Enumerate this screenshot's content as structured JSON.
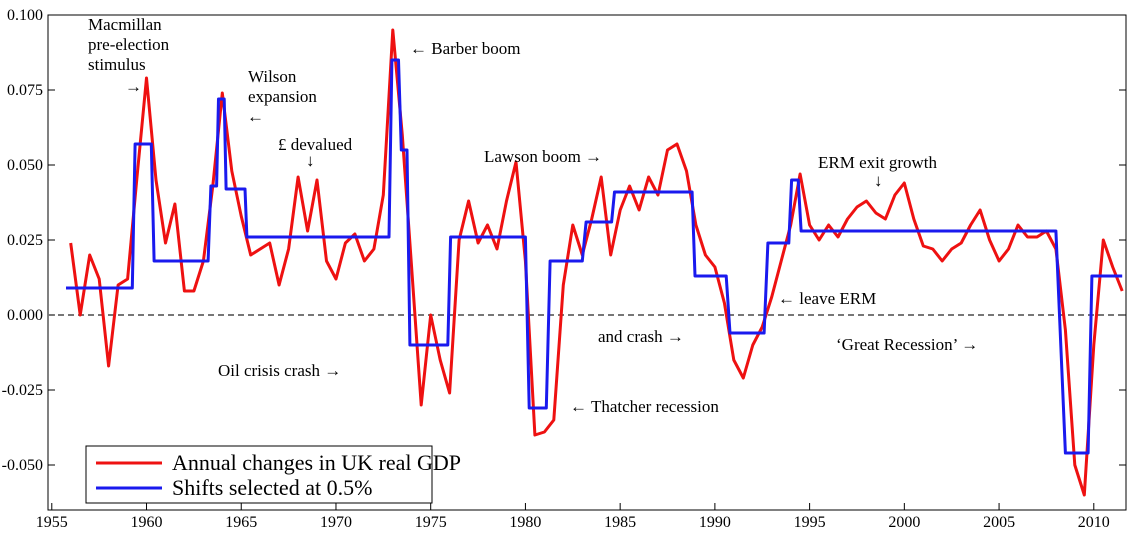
{
  "chart_data": {
    "type": "line",
    "xlim": [
      1954.8,
      2011.7
    ],
    "xticks": [
      1955,
      1960,
      1965,
      1970,
      1975,
      1980,
      1985,
      1990,
      1995,
      2000,
      2005,
      2010
    ],
    "ylim": [
      -0.065,
      0.1
    ],
    "yticks": [
      {
        "value": -0.05,
        "label": "-0.050"
      },
      {
        "value": -0.025,
        "label": "-0.025"
      },
      {
        "value": 0,
        "label": "0.000"
      },
      {
        "value": 0.025,
        "label": "0.025"
      },
      {
        "value": 0.05,
        "label": "0.050"
      },
      {
        "value": 0.075,
        "label": "0.075"
      },
      {
        "value": 0.1,
        "label": "0.100"
      }
    ],
    "zero_line": true,
    "legend": "lower left",
    "series": [
      {
        "name": "Annual changes in UK real GDP",
        "color": "#ee1111",
        "x": [
          1956,
          1956.5,
          1957,
          1957.5,
          1958,
          1958.5,
          1959,
          1959.5,
          1960,
          1960.5,
          1961,
          1961.5,
          1962,
          1962.5,
          1963,
          1963.5,
          1964,
          1964.5,
          1965,
          1965.5,
          1966,
          1966.5,
          1967,
          1967.5,
          1968,
          1968.5,
          1969,
          1969.5,
          1970,
          1970.5,
          1971,
          1971.5,
          1972,
          1972.5,
          1973,
          1973.5,
          1974,
          1974.5,
          1975,
          1975.5,
          1976,
          1976.5,
          1977,
          1977.5,
          1978,
          1978.5,
          1979,
          1979.5,
          1980,
          1980.5,
          1981,
          1981.5,
          1982,
          1982.5,
          1983,
          1983.5,
          1984,
          1984.5,
          1985,
          1985.5,
          1986,
          1986.5,
          1987,
          1987.5,
          1988,
          1988.5,
          1989,
          1989.5,
          1990,
          1990.5,
          1991,
          1991.5,
          1992,
          1992.5,
          1993,
          1993.5,
          1994,
          1994.5,
          1995,
          1995.5,
          1996,
          1996.5,
          1997,
          1997.5,
          1998,
          1998.5,
          1999,
          1999.5,
          2000,
          2000.5,
          2001,
          2001.5,
          2002,
          2002.5,
          2003,
          2003.5,
          2004,
          2004.5,
          2005,
          2005.5,
          2006,
          2006.5,
          2007,
          2007.5,
          2008,
          2008.5,
          2009,
          2009.5,
          2010,
          2010.5,
          2011,
          2011.5
        ],
        "values": [
          0.024,
          0.0,
          0.02,
          0.012,
          -0.017,
          0.01,
          0.012,
          0.046,
          0.079,
          0.045,
          0.024,
          0.037,
          0.008,
          0.008,
          0.018,
          0.043,
          0.074,
          0.048,
          0.033,
          0.02,
          0.022,
          0.024,
          0.01,
          0.022,
          0.046,
          0.028,
          0.045,
          0.018,
          0.012,
          0.024,
          0.027,
          0.018,
          0.022,
          0.04,
          0.095,
          0.06,
          0.015,
          -0.03,
          0.0,
          -0.015,
          -0.026,
          0.025,
          0.038,
          0.024,
          0.03,
          0.022,
          0.038,
          0.051,
          0.018,
          -0.04,
          -0.039,
          -0.035,
          0.01,
          0.03,
          0.02,
          0.032,
          0.046,
          0.02,
          0.035,
          0.043,
          0.035,
          0.046,
          0.04,
          0.055,
          0.057,
          0.048,
          0.03,
          0.02,
          0.016,
          0.004,
          -0.015,
          -0.021,
          -0.01,
          -0.004,
          0.006,
          0.018,
          0.03,
          0.047,
          0.03,
          0.025,
          0.03,
          0.026,
          0.032,
          0.036,
          0.038,
          0.034,
          0.032,
          0.04,
          0.044,
          0.032,
          0.023,
          0.022,
          0.018,
          0.022,
          0.024,
          0.03,
          0.035,
          0.025,
          0.018,
          0.022,
          0.03,
          0.026,
          0.026,
          0.028,
          0.022,
          -0.005,
          -0.05,
          -0.06,
          -0.01,
          0.025,
          0.016,
          0.008
        ]
      },
      {
        "name": "Shifts selected at 0.5%",
        "color": "#1a1aee",
        "x": [
          1955.75,
          1959.25,
          1959.4,
          1960.25,
          1960.4,
          1963.25,
          1963.4,
          1963.7,
          1963.8,
          1964.1,
          1964.2,
          1965.2,
          1965.3,
          1972.8,
          1972.95,
          1973.3,
          1973.45,
          1973.75,
          1973.9,
          1975.9,
          1976.05,
          1980.0,
          1980.2,
          1981.1,
          1981.3,
          1983.0,
          1983.2,
          1984.55,
          1984.7,
          1988.8,
          1988.95,
          1990.6,
          1990.8,
          1992.6,
          1992.8,
          1993.9,
          1994.05,
          1994.4,
          1994.55,
          2008.0,
          2008.5,
          2009.7,
          2009.9,
          2011.5
        ],
        "values": [
          0.009,
          0.009,
          0.057,
          0.057,
          0.018,
          0.018,
          0.043,
          0.043,
          0.072,
          0.072,
          0.042,
          0.042,
          0.026,
          0.026,
          0.085,
          0.085,
          0.055,
          0.055,
          -0.01,
          -0.01,
          0.026,
          0.026,
          -0.031,
          -0.031,
          0.018,
          0.018,
          0.031,
          0.031,
          0.041,
          0.041,
          0.013,
          0.013,
          -0.006,
          -0.006,
          0.024,
          0.024,
          0.045,
          0.045,
          0.028,
          0.028,
          -0.046,
          -0.046,
          0.013,
          0.013
        ]
      }
    ],
    "annotations": [
      "Macmillan",
      "pre-election",
      "stimulus",
      "→",
      "Wilson",
      "expansion",
      "←",
      "← Barber boom",
      "£ devalued",
      "↓",
      "Lawson boom →",
      "ERM exit growth",
      "↓",
      "← leave ERM",
      "and crash →",
      "‘Great Recession’ →",
      "Oil crisis crash →",
      "← Thatcher recession"
    ]
  }
}
